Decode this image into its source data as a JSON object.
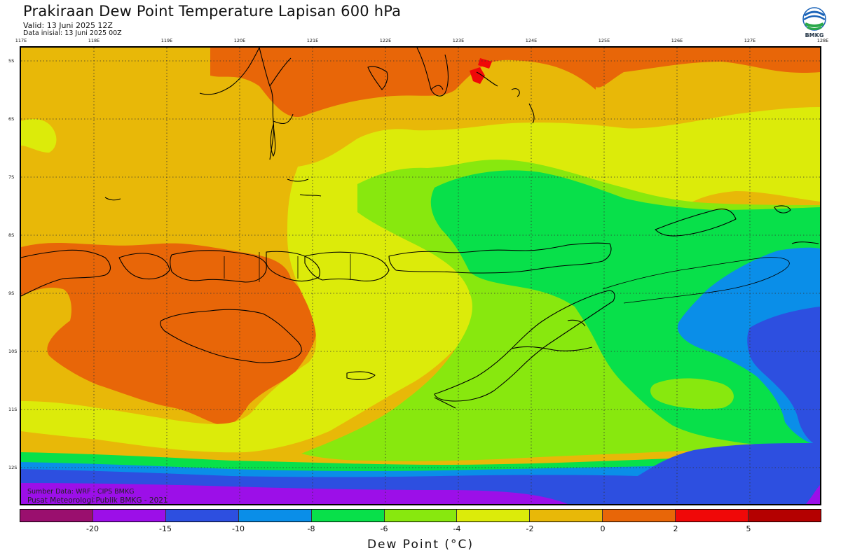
{
  "title": "Prakiraan Dew Point Temperature Lapisan 600 hPa",
  "valid": "Valid: 13 Juni 2025 12Z",
  "init": "Data inisial: 13 Juni 2025 00Z",
  "logo_text": "BMKG",
  "source": "Sumber Data: WRF - CIPS BMKG",
  "center": "Pusat Meteorologi Publik BMKG - 2021",
  "lon_labels": [
    "117E",
    "118E",
    "119E",
    "120E",
    "121E",
    "122E",
    "123E",
    "124E",
    "125E",
    "126E",
    "127E",
    "128E"
  ],
  "lat_labels": [
    "5S",
    "6S",
    "7S",
    "8S",
    "9S",
    "10S",
    "11S",
    "12S"
  ],
  "colorbar": {
    "title": "Dew Point (°C)",
    "tick_labels": [
      "-20",
      "-15",
      "-10",
      "-8",
      "-6",
      "-4",
      "-2",
      "0",
      "2",
      "5"
    ],
    "colors": [
      "#9a0f6e",
      "#9c0fe8",
      "#2d4fe0",
      "#0a8ee8",
      "#08e04a",
      "#88e80e",
      "#dceb0a",
      "#e8b808",
      "#e86608",
      "#f00808",
      "#b40000"
    ]
  },
  "colors": {
    "violet": "#9c0fe8",
    "blue": "#2d4fe0",
    "lightblue": "#0a8ee8",
    "green": "#08e04a",
    "lime": "#88e80e",
    "yellow": "#dceb0a",
    "gold": "#e8b808",
    "orange": "#e86608",
    "red": "#f00808"
  }
}
